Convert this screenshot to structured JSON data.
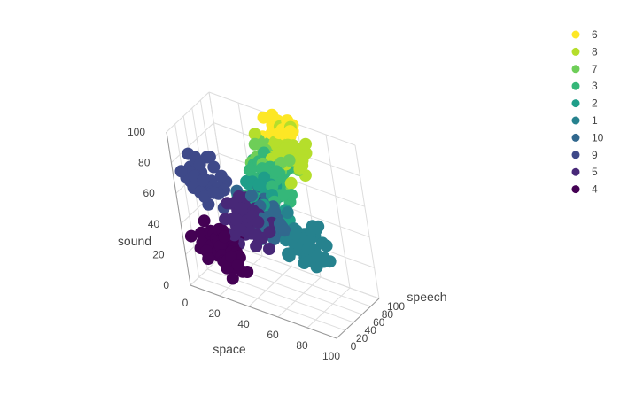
{
  "chart_data": {
    "type": "scatter",
    "subtype": "scatter3d",
    "title": "",
    "axes": {
      "x": {
        "label": "space",
        "range": [
          0,
          100
        ],
        "ticks": [
          "0",
          "20",
          "40",
          "60",
          "80",
          "100"
        ]
      },
      "y": {
        "label": "speech",
        "range": [
          0,
          100
        ],
        "ticks": [
          "0",
          "20",
          "40",
          "60",
          "80",
          "100"
        ]
      },
      "z": {
        "label": "sound",
        "range": [
          0,
          100
        ],
        "ticks": [
          "0",
          "20",
          "40",
          "60",
          "80",
          "100"
        ]
      }
    },
    "grid": true,
    "legend": {
      "placement": "top-right",
      "order": [
        "6",
        "8",
        "7",
        "3",
        "2",
        "1",
        "10",
        "9",
        "5",
        "4"
      ]
    },
    "series": [
      {
        "name": "6",
        "color": "#fde725",
        "cluster_center": {
          "space": 48,
          "speech": 100,
          "sound": 92
        },
        "spread": 10,
        "count": 40
      },
      {
        "name": "8",
        "color": "#b5de2b",
        "cluster_center": {
          "space": 52,
          "speech": 92,
          "sound": 80
        },
        "spread": 11,
        "count": 55
      },
      {
        "name": "7",
        "color": "#6ece58",
        "cluster_center": {
          "space": 44,
          "speech": 84,
          "sound": 72
        },
        "spread": 11,
        "count": 40
      },
      {
        "name": "3",
        "color": "#35b779",
        "cluster_center": {
          "space": 46,
          "speech": 74,
          "sound": 62
        },
        "spread": 13,
        "count": 70
      },
      {
        "name": "2",
        "color": "#1f9e89",
        "cluster_center": {
          "space": 44,
          "speech": 56,
          "sound": 52
        },
        "spread": 14,
        "count": 45
      },
      {
        "name": "1",
        "color": "#26828e",
        "cluster_center": {
          "space": 68,
          "speech": 52,
          "sound": 36
        },
        "spread": 13,
        "count": 50
      },
      {
        "name": "10",
        "color": "#31688e",
        "cluster_center": {
          "space": 44,
          "speech": 44,
          "sound": 48
        },
        "spread": 12,
        "count": 55
      },
      {
        "name": "9",
        "color": "#3e4989",
        "cluster_center": {
          "space": 14,
          "speech": 22,
          "sound": 68
        },
        "spread": 12,
        "count": 35
      },
      {
        "name": "5",
        "color": "#482878",
        "cluster_center": {
          "space": 38,
          "speech": 30,
          "sound": 46
        },
        "spread": 12,
        "count": 55
      },
      {
        "name": "4",
        "color": "#440154",
        "cluster_center": {
          "space": 20,
          "speech": 18,
          "sound": 28
        },
        "spread": 12,
        "count": 60
      }
    ]
  }
}
